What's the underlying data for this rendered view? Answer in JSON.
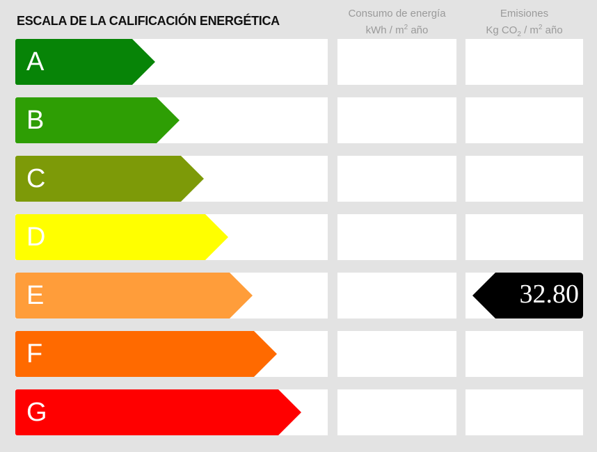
{
  "title": "ESCALA DE LA CALIFICACIÓN ENERGÉTICA",
  "columns": {
    "consumo": {
      "line1": "Consumo de energía",
      "line2_pre": "kWh / m",
      "sup": "2",
      "line2_post": " año"
    },
    "emisiones": {
      "line1": "Emisiones",
      "line2_pre": "Kg CO",
      "sub": "2",
      "line2_mid": " / m",
      "sup": "2",
      "line2_post": " año"
    }
  },
  "ratings": [
    {
      "letter": "A",
      "color": "#078407"
    },
    {
      "letter": "B",
      "color": "#2e9e04"
    },
    {
      "letter": "C",
      "color": "#7d9a08"
    },
    {
      "letter": "D",
      "color": "#ffff00"
    },
    {
      "letter": "E",
      "color": "#ff9d3a"
    },
    {
      "letter": "F",
      "color": "#ff6a00"
    },
    {
      "letter": "G",
      "color": "#ff0000"
    }
  ],
  "emisiones_indicator": {
    "rating": "E",
    "value": "32.80",
    "color": "#000000"
  }
}
